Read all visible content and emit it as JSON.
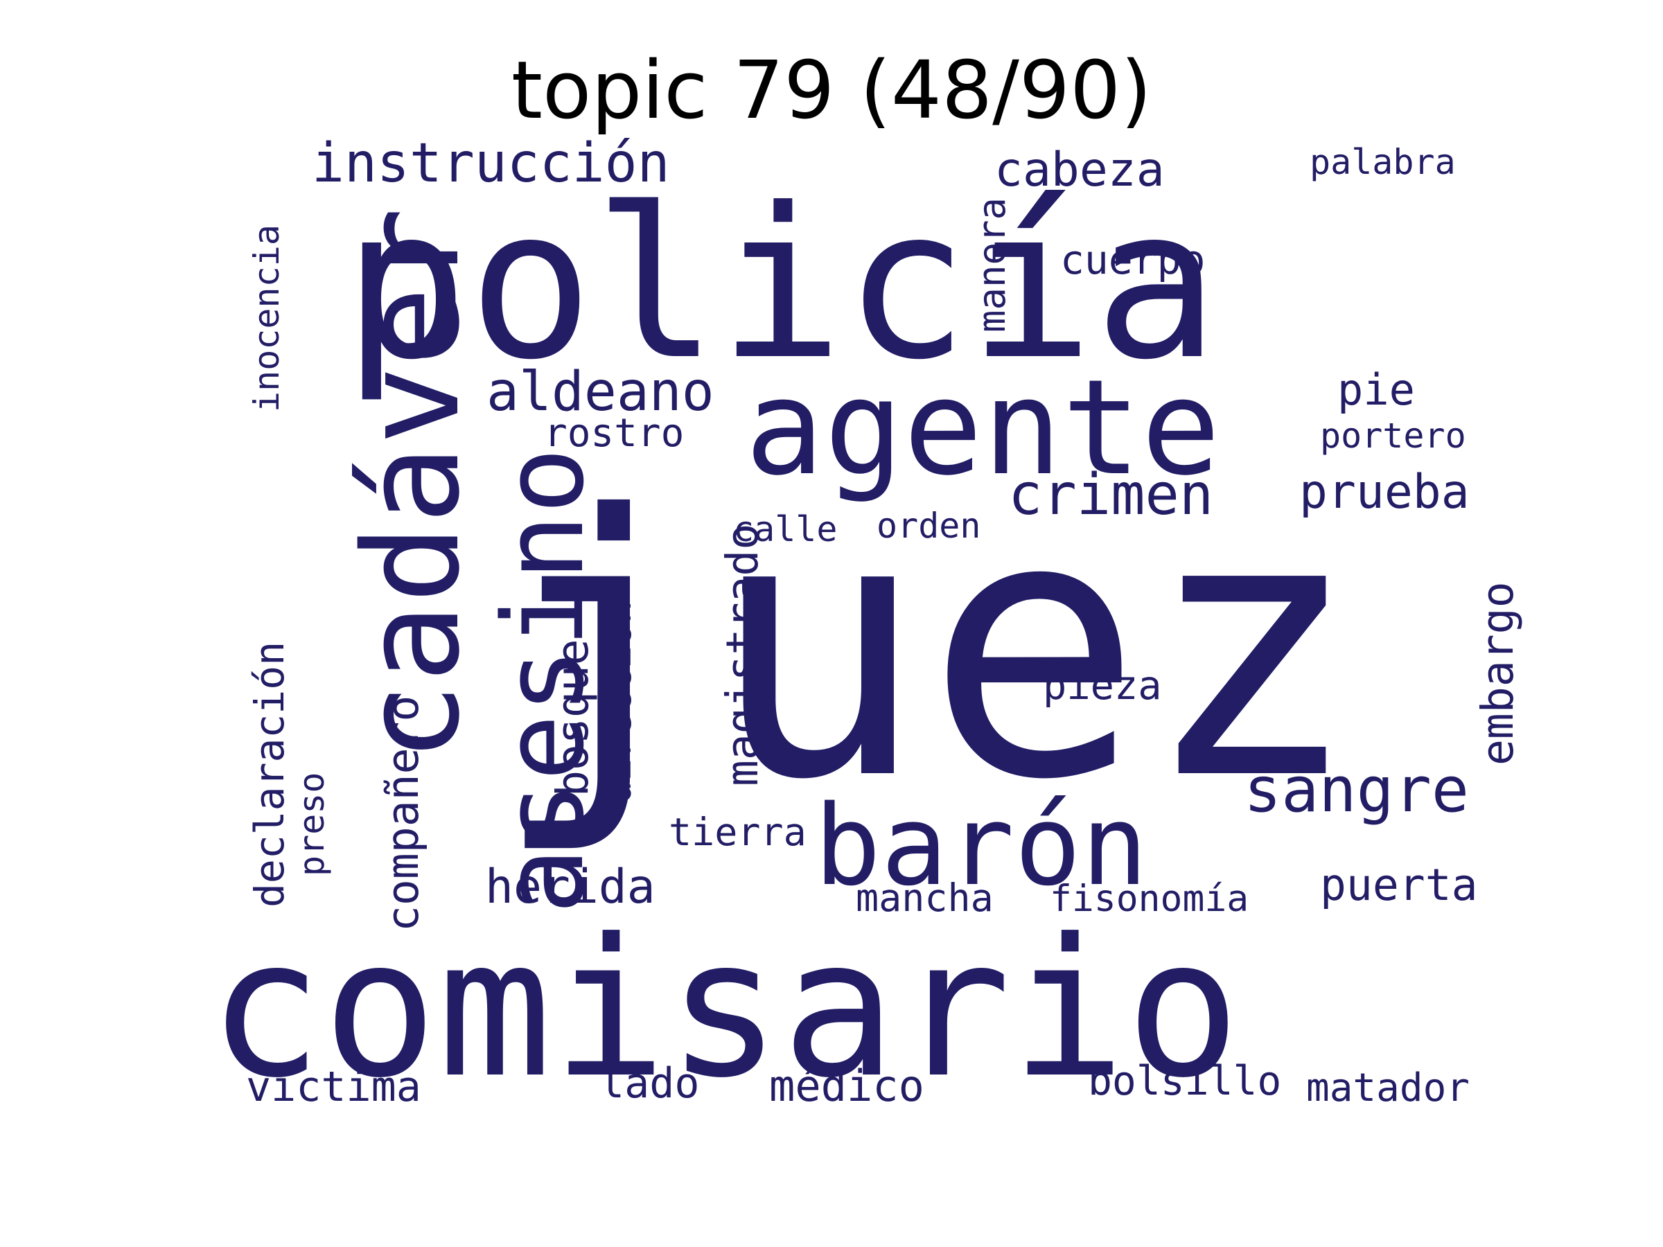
{
  "title": "topic 79 (48/90)",
  "color": "#221d65",
  "words": [
    "juez",
    "policía",
    "comisario",
    "agente",
    "cadáver",
    "asesino",
    "barón",
    "crimen",
    "sangre",
    "instrucción",
    "aldeano",
    "cabeza",
    "prueba",
    "herida",
    "magistrado",
    "compañero",
    "embargo",
    "bosque",
    "puerta",
    "cuerpo",
    "declaración",
    "pie",
    "dirección",
    "manera",
    "pieza",
    "rostro",
    "médico",
    "víctima",
    "bolsillo",
    "matador",
    "lado",
    "tierra",
    "inocencia",
    "portero",
    "orden",
    "palabra",
    "calle",
    "mancha",
    "fisonomía",
    "preso"
  ]
}
